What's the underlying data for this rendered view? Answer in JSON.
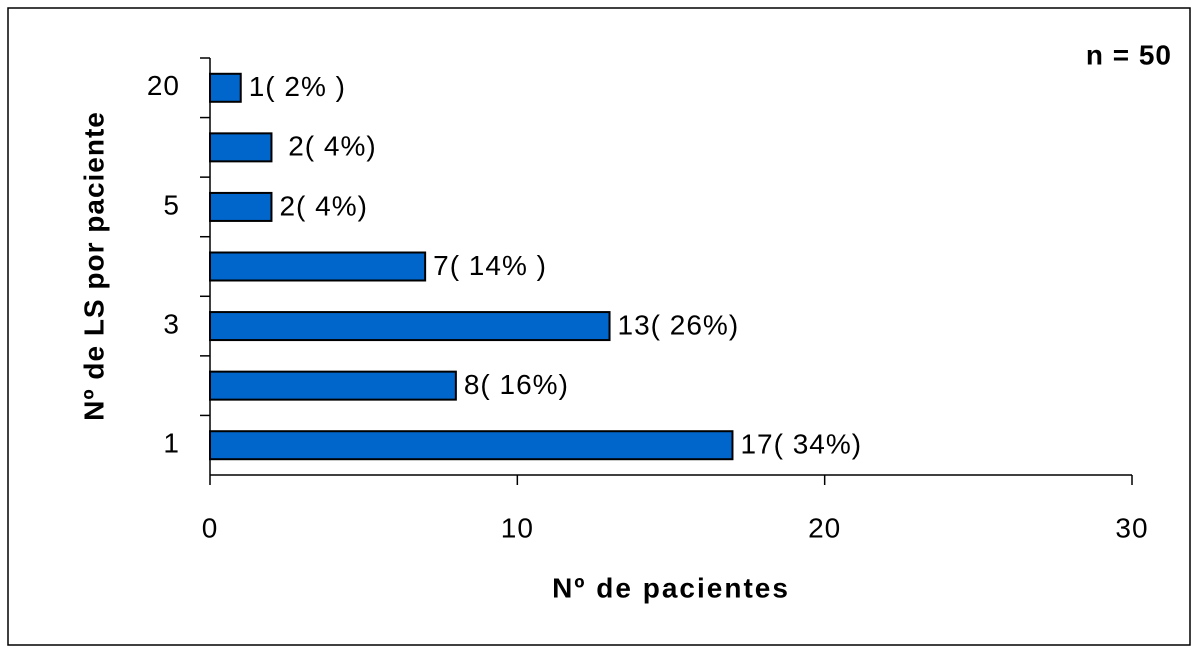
{
  "chart_data": {
    "type": "hbar",
    "annotation": "n = 50",
    "xlabel": "Nº de pacientes",
    "ylabel": "Nº de LS por paciente",
    "categories": [
      "1",
      null,
      "3",
      null,
      "5",
      null,
      "20"
    ],
    "values": [
      17,
      8,
      13,
      7,
      2,
      2,
      1
    ],
    "value_labels": [
      "17( 34%)",
      "8( 16%)",
      "13( 26%)",
      "7( 14% )",
      "2( 4%)",
      " 2( 4%)",
      "1( 2% )"
    ],
    "color": "#0066cc",
    "xlim": [
      0,
      30
    ],
    "xticks": [
      0,
      10,
      20,
      30
    ],
    "grid": false
  }
}
